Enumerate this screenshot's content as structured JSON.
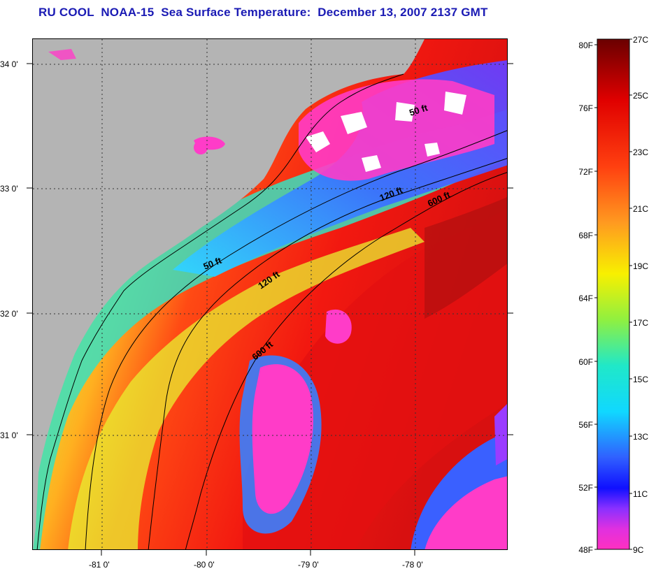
{
  "title": "RU COOL  NOAA-15  Sea Surface Temperature:  December 13, 2007 2137 GMT",
  "map": {
    "lat_ticks": [
      "34 0'",
      "33 0'",
      "32 0'",
      "31 0'"
    ],
    "lon_ticks": [
      "-81 0'",
      "-80 0'",
      "-79 0'",
      "-78 0'"
    ],
    "contour_labels": [
      "50 ft",
      "120 ft",
      "600 ft",
      "50 ft",
      "120 ft",
      "600 ft"
    ]
  },
  "colorbar": {
    "fahrenheit": [
      "80F",
      "76F",
      "72F",
      "68F",
      "64F",
      "60F",
      "56F",
      "52F",
      "48F"
    ],
    "celsius": [
      "27C",
      "25C",
      "23C",
      "21C",
      "19C",
      "17C",
      "15C",
      "13C",
      "11C",
      "9C"
    ]
  },
  "colors": {
    "land": "#b4b4b4",
    "title": "#1a1ab4"
  }
}
